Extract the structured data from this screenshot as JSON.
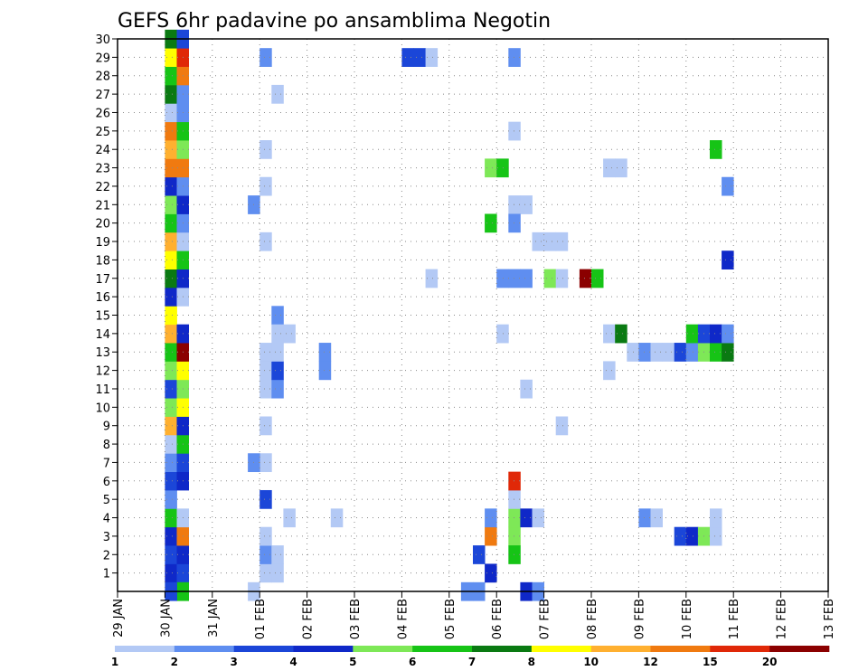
{
  "chart_data": {
    "type": "heatmap",
    "title": "GEFS 6hr padavine po ansamblima Negotin",
    "xlabel": "",
    "ylabel": "",
    "x_ticks": [
      "29 JAN",
      "30 JAN",
      "31 JAN",
      "01 FEB",
      "02 FEB",
      "03 FEB",
      "04 FEB",
      "05 FEB",
      "06 FEB",
      "07 FEB",
      "08 FEB",
      "09 FEB",
      "10 FEB",
      "11 FEB",
      "12 FEB",
      "13 FEB"
    ],
    "y_ticks": [
      "1",
      "2",
      "3",
      "4",
      "5",
      "6",
      "7",
      "8",
      "9",
      "10",
      "11",
      "12",
      "13",
      "14",
      "15",
      "16",
      "17",
      "18",
      "19",
      "20",
      "21",
      "22",
      "23",
      "24",
      "25",
      "26",
      "27",
      "28",
      "29",
      "30"
    ],
    "xlim": [
      0,
      60
    ],
    "ylim": [
      0,
      30
    ],
    "grid": true,
    "colorbar": {
      "labels": [
        "1",
        "2",
        "3",
        "4",
        "5",
        "6",
        "7",
        "8",
        "10",
        "12",
        "15",
        "20"
      ],
      "colors": [
        "#b3c9f5",
        "#5f8ef0",
        "#1b46d8",
        "#0f28c8",
        "#7ee857",
        "#16c416",
        "#0a7a12",
        "#ffff00",
        "#ffb030",
        "#f07a10",
        "#e02808",
        "#8b0000"
      ]
    },
    "cells": [
      [
        4,
        1,
        4
      ],
      [
        4,
        2,
        3
      ],
      [
        4,
        3,
        4
      ],
      [
        4,
        4,
        6
      ],
      [
        4,
        5,
        2
      ],
      [
        4,
        6,
        3
      ],
      [
        4,
        7,
        2
      ],
      [
        4,
        8,
        1
      ],
      [
        4,
        9,
        9
      ],
      [
        4,
        10,
        5
      ],
      [
        4,
        11,
        3
      ],
      [
        4,
        12,
        5
      ],
      [
        4,
        13,
        6
      ],
      [
        4,
        14,
        9
      ],
      [
        4,
        15,
        8
      ],
      [
        4,
        16,
        4
      ],
      [
        4,
        17,
        7
      ],
      [
        4,
        18,
        8
      ],
      [
        4,
        19,
        9
      ],
      [
        4,
        20,
        6
      ],
      [
        4,
        21,
        5
      ],
      [
        4,
        22,
        4
      ],
      [
        4,
        23,
        10
      ],
      [
        4,
        24,
        9
      ],
      [
        4,
        25,
        10
      ],
      [
        4,
        26,
        1
      ],
      [
        4,
        27,
        7
      ],
      [
        4,
        28,
        6
      ],
      [
        4,
        29,
        8
      ],
      [
        4,
        30,
        7
      ],
      [
        5,
        1,
        3
      ],
      [
        5,
        2,
        4
      ],
      [
        5,
        3,
        10
      ],
      [
        5,
        4,
        1
      ],
      [
        5,
        6,
        4
      ],
      [
        5,
        7,
        3
      ],
      [
        5,
        8,
        6
      ],
      [
        5,
        9,
        4
      ],
      [
        5,
        10,
        8
      ],
      [
        5,
        11,
        5
      ],
      [
        5,
        12,
        8
      ],
      [
        5,
        13,
        12
      ],
      [
        5,
        14,
        4
      ],
      [
        5,
        16,
        1
      ],
      [
        5,
        17,
        4
      ],
      [
        5,
        18,
        6
      ],
      [
        5,
        19,
        1
      ],
      [
        5,
        20,
        2
      ],
      [
        5,
        21,
        4
      ],
      [
        5,
        22,
        2
      ],
      [
        5,
        23,
        10
      ],
      [
        5,
        24,
        5
      ],
      [
        5,
        25,
        6
      ],
      [
        5,
        26,
        2
      ],
      [
        5,
        27,
        2
      ],
      [
        5,
        28,
        10
      ],
      [
        5,
        29,
        11
      ],
      [
        5,
        30,
        3
      ],
      [
        5,
        0,
        6
      ],
      [
        4,
        0,
        3
      ],
      [
        11,
        0,
        1
      ],
      [
        12,
        1,
        1
      ],
      [
        12,
        2,
        2
      ],
      [
        12,
        3,
        1
      ],
      [
        12,
        5,
        3
      ],
      [
        12,
        7,
        1
      ],
      [
        12,
        9,
        1
      ],
      [
        12,
        11,
        1
      ],
      [
        12,
        12,
        1
      ],
      [
        12,
        24,
        1
      ],
      [
        12,
        22,
        1
      ],
      [
        12,
        19,
        1
      ],
      [
        11,
        7,
        2
      ],
      [
        11,
        21,
        2
      ],
      [
        13,
        1,
        1
      ],
      [
        13,
        2,
        1
      ],
      [
        13,
        11,
        2
      ],
      [
        13,
        12,
        3
      ],
      [
        13,
        13,
        1
      ],
      [
        13,
        15,
        2
      ],
      [
        13,
        14,
        1
      ],
      [
        14,
        14,
        1
      ],
      [
        14,
        4,
        1
      ],
      [
        12,
        29,
        2
      ],
      [
        13,
        27,
        1
      ],
      [
        12,
        13,
        1
      ],
      [
        17,
        12,
        2
      ],
      [
        17,
        13,
        2
      ],
      [
        18,
        4,
        1
      ],
      [
        24,
        29,
        3
      ],
      [
        25,
        29,
        3
      ],
      [
        26,
        29,
        1
      ],
      [
        26,
        17,
        1
      ],
      [
        29,
        0,
        2
      ],
      [
        30,
        0,
        2
      ],
      [
        30,
        2,
        3
      ],
      [
        31,
        3,
        10
      ],
      [
        31,
        1,
        4
      ],
      [
        31,
        4,
        2
      ],
      [
        31,
        23,
        5
      ],
      [
        32,
        23,
        6
      ],
      [
        32,
        17,
        2
      ],
      [
        32,
        14,
        1
      ],
      [
        31,
        20,
        6
      ],
      [
        33,
        17,
        2
      ],
      [
        34,
        17,
        2
      ],
      [
        33,
        3,
        5
      ],
      [
        33,
        4,
        5
      ],
      [
        33,
        2,
        6
      ],
      [
        33,
        5,
        1
      ],
      [
        33,
        25,
        1
      ],
      [
        33,
        29,
        2
      ],
      [
        33,
        21,
        1
      ],
      [
        34,
        21,
        1
      ],
      [
        33,
        20,
        2
      ],
      [
        33,
        6,
        11
      ],
      [
        34,
        4,
        4
      ],
      [
        35,
        4,
        1
      ],
      [
        34,
        0,
        4
      ],
      [
        35,
        0,
        2
      ],
      [
        35,
        19,
        1
      ],
      [
        36,
        19,
        1
      ],
      [
        37,
        19,
        1
      ],
      [
        34,
        11,
        1
      ],
      [
        37,
        9,
        1
      ],
      [
        36,
        17,
        5
      ],
      [
        37,
        17,
        1
      ],
      [
        39,
        17,
        12
      ],
      [
        40,
        17,
        6
      ],
      [
        41,
        14,
        1
      ],
      [
        42,
        14,
        7
      ],
      [
        41,
        23,
        1
      ],
      [
        42,
        23,
        1
      ],
      [
        41,
        12,
        1
      ],
      [
        43,
        13,
        1
      ],
      [
        44,
        13,
        2
      ],
      [
        45,
        13,
        1
      ],
      [
        46,
        13,
        1
      ],
      [
        47,
        13,
        3
      ],
      [
        48,
        13,
        2
      ],
      [
        49,
        13,
        5
      ],
      [
        50,
        13,
        6
      ],
      [
        51,
        13,
        7
      ],
      [
        48,
        14,
        6
      ],
      [
        49,
        14,
        3
      ],
      [
        50,
        14,
        4
      ],
      [
        51,
        14,
        2
      ],
      [
        44,
        4,
        2
      ],
      [
        45,
        4,
        1
      ],
      [
        47,
        3,
        3
      ],
      [
        48,
        3,
        4
      ],
      [
        49,
        3,
        5
      ],
      [
        50,
        3,
        1
      ],
      [
        50,
        4,
        1
      ],
      [
        50,
        24,
        6
      ],
      [
        51,
        22,
        2
      ],
      [
        51,
        18,
        4
      ]
    ]
  }
}
